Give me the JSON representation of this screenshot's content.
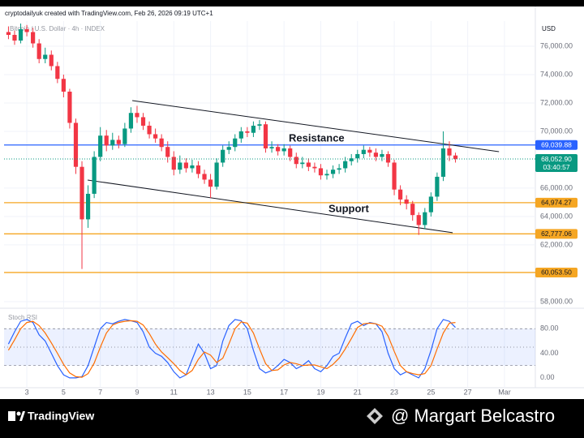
{
  "header": "cryptodailyuk created with TradingView.com, Feb 26, 2026 09:19 UTC+1",
  "footer": {
    "brand": "TradingView",
    "watermark": "@ Margart Belcastro"
  },
  "chart_data": [
    {
      "type": "candlestick",
      "title": "Bitcoin / U.S. Dollar · 4h · INDEX",
      "currency": "USD",
      "up_color": "#089981",
      "down_color": "#f23645",
      "x": [
        2,
        2.333,
        2.667,
        3,
        3.333,
        3.667,
        4,
        4.333,
        4.667,
        5,
        5.333,
        5.667,
        6,
        6.333,
        6.667,
        7,
        7.333,
        7.667,
        8,
        8.333,
        8.667,
        9,
        9.333,
        9.667,
        10,
        10.333,
        10.667,
        11,
        11.333,
        11.667,
        12,
        12.333,
        12.667,
        13,
        13.333,
        13.667,
        14,
        14.333,
        14.667,
        15,
        15.333,
        15.667,
        16,
        16.333,
        16.667,
        17,
        17.333,
        17.667,
        18,
        18.333,
        18.667,
        19,
        19.333,
        19.667,
        20,
        20.333,
        20.667,
        21,
        21.333,
        21.667,
        22,
        22.333,
        22.667,
        23,
        23.333,
        23.667,
        24,
        24.333,
        24.667,
        25,
        25.333,
        25.667,
        26,
        26.333
      ],
      "open": [
        77000,
        76800,
        76400,
        77200,
        77000,
        76200,
        75100,
        75400,
        74600,
        73700,
        72800,
        70600,
        67500,
        63800,
        65600,
        68200,
        69700,
        69000,
        69400,
        69100,
        70200,
        71300,
        71000,
        70400,
        69800,
        69500,
        68900,
        68200,
        67300,
        67800,
        67400,
        67600,
        67000,
        66600,
        66100,
        67800,
        68700,
        68900,
        69500,
        70000,
        69900,
        70400,
        70500,
        68800,
        68900,
        68600,
        68800,
        68200,
        67700,
        67800,
        67500,
        67400,
        66900,
        67000,
        67300,
        67400,
        67900,
        68100,
        68400,
        68700,
        68500,
        68200,
        68400,
        67800,
        65900,
        65200,
        64900,
        64100,
        63400,
        64300,
        65400,
        66800,
        68800,
        68300
      ],
      "high": [
        77400,
        77100,
        77600,
        77500,
        77300,
        76500,
        75900,
        75700,
        74900,
        74000,
        73000,
        70900,
        67900,
        66200,
        68600,
        70300,
        70100,
        69900,
        69700,
        70600,
        71700,
        71800,
        71300,
        70700,
        70200,
        69800,
        69300,
        68600,
        68300,
        68100,
        68000,
        67900,
        67300,
        67000,
        68100,
        69000,
        69300,
        69800,
        70300,
        70300,
        70700,
        70800,
        70700,
        69300,
        69100,
        69100,
        69000,
        68500,
        68200,
        68100,
        67800,
        67700,
        67300,
        67600,
        67700,
        68200,
        68400,
        68700,
        69000,
        68900,
        68800,
        68700,
        68600,
        68000,
        66200,
        65500,
        65100,
        64300,
        64600,
        65700,
        67100,
        70000,
        69300,
        68500
      ],
      "low": [
        76500,
        76100,
        76200,
        76700,
        75900,
        74800,
        74800,
        74300,
        73400,
        72400,
        70200,
        67000,
        60300,
        63200,
        65300,
        67900,
        68600,
        68700,
        68800,
        68900,
        69900,
        70600,
        70100,
        69500,
        69200,
        68600,
        67800,
        66900,
        67000,
        67100,
        67100,
        66700,
        66300,
        65300,
        65900,
        67500,
        68400,
        68600,
        69200,
        69600,
        69600,
        70100,
        68500,
        68500,
        68300,
        68300,
        67900,
        67400,
        67400,
        67200,
        67100,
        66600,
        66600,
        66700,
        67000,
        67100,
        67600,
        67800,
        68100,
        68200,
        67900,
        67900,
        67500,
        65500,
        64800,
        64500,
        63700,
        62700,
        63100,
        64000,
        65100,
        66500,
        67900,
        67800
      ],
      "close": [
        76800,
        76400,
        77200,
        77000,
        76200,
        75100,
        75400,
        74600,
        73700,
        72800,
        70600,
        67500,
        63800,
        65600,
        68200,
        69700,
        69000,
        69400,
        69100,
        70200,
        71300,
        71000,
        70400,
        69800,
        69500,
        68900,
        68200,
        67300,
        67800,
        67400,
        67600,
        67000,
        66600,
        66100,
        67800,
        68700,
        68900,
        69500,
        70000,
        69900,
        70400,
        70500,
        68800,
        68900,
        68600,
        68800,
        68200,
        67700,
        67800,
        67500,
        67400,
        66900,
        67000,
        67300,
        67400,
        67900,
        68100,
        68400,
        68700,
        68500,
        68200,
        68400,
        67800,
        65900,
        65200,
        64900,
        64100,
        63400,
        64300,
        65400,
        66800,
        68800,
        68300,
        68050
      ],
      "xlim": [
        1.76,
        30.68
      ],
      "xticks": [
        3,
        5,
        7,
        9,
        11,
        13,
        15,
        17,
        19,
        21,
        23,
        25,
        27,
        {
          "value": 29,
          "label": "Mar"
        }
      ],
      "ylim": [
        57650,
        77830
      ],
      "yticks": [
        {
          "value": 58000,
          "label": "58,000.00"
        },
        {
          "value": 62000,
          "label": "62,000.00"
        },
        {
          "value": 64000,
          "label": "64,000.00"
        },
        {
          "value": 66000,
          "label": "66,000.00"
        },
        {
          "value": 70000,
          "label": "70,000.00"
        },
        {
          "value": 72000,
          "label": "72,000.00"
        },
        {
          "value": 74000,
          "label": "74,000.00"
        },
        {
          "value": 76000,
          "label": "76,000.00"
        }
      ],
      "grid": true,
      "levels": [
        {
          "value": 69039.88,
          "label": "69,039.88",
          "color": "#2962ff"
        },
        {
          "value": 64974.27,
          "label": "64,974.27",
          "color": "#f5a623"
        },
        {
          "value": 62777.06,
          "label": "62,777.06",
          "color": "#f5a623"
        },
        {
          "value": 60053.5,
          "label": "60,053.50",
          "color": "#f5a623"
        }
      ],
      "last_price": {
        "value": 68052.9,
        "label": "68,052.90",
        "countdown": "03:40:57",
        "color": "#089981"
      },
      "trendlines": [
        {
          "name": "Resistance",
          "x": [
            8.74,
            28.7
          ],
          "y": [
            72171,
            68571
          ]
        },
        {
          "name": "Support",
          "x": [
            6.31,
            26.18
          ],
          "y": [
            66571,
            62857
          ]
        }
      ]
    },
    {
      "type": "line",
      "title": "Stoch RSI",
      "series": [
        {
          "color": "#2962ff",
          "values": [
            55,
            75,
            92,
            95,
            90,
            70,
            60,
            40,
            20,
            5,
            0,
            0,
            2,
            20,
            50,
            80,
            90,
            88,
            92,
            95,
            93,
            90,
            75,
            50,
            40,
            35,
            25,
            10,
            0,
            5,
            30,
            55,
            40,
            15,
            20,
            60,
            85,
            95,
            93,
            80,
            45,
            15,
            8,
            12,
            20,
            30,
            25,
            15,
            20,
            28,
            15,
            10,
            20,
            35,
            40,
            65,
            88,
            92,
            85,
            90,
            88,
            75,
            40,
            15,
            5,
            10,
            5,
            0,
            15,
            45,
            80,
            95,
            92,
            82
          ]
        },
        {
          "color": "#ff6d00",
          "values": [
            45,
            62,
            80,
            90,
            92,
            85,
            73,
            57,
            40,
            22,
            8,
            2,
            1,
            7,
            24,
            50,
            73,
            86,
            90,
            92,
            93,
            92,
            86,
            72,
            55,
            42,
            33,
            23,
            12,
            5,
            12,
            30,
            42,
            37,
            25,
            32,
            55,
            80,
            91,
            89,
            73,
            47,
            23,
            12,
            13,
            21,
            25,
            23,
            20,
            21,
            21,
            18,
            15,
            22,
            32,
            47,
            64,
            82,
            88,
            89,
            88,
            84,
            68,
            43,
            20,
            10,
            7,
            5,
            7,
            20,
            47,
            73,
            89,
            90
          ]
        }
      ],
      "ylim": [
        -16,
        108
      ],
      "yticks": [
        {
          "value": 0,
          "label": "0.00"
        },
        {
          "value": 40,
          "label": "40.00"
        },
        {
          "value": 80,
          "label": "80.00"
        }
      ],
      "band": [
        20,
        80
      ],
      "midline": 50
    }
  ]
}
